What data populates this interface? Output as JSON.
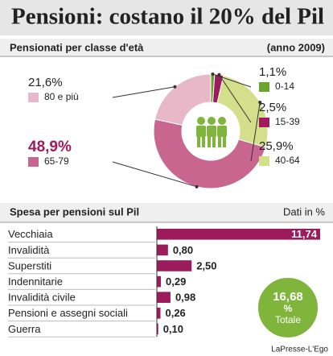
{
  "title": "Pensioni: costano il 20% del Pil",
  "credit": "LaPresse-L'Ego",
  "chart_data": [
    {
      "type": "pie",
      "title": "Pensionati per classe d'età",
      "subtitle": "(anno 2009)",
      "categories": [
        "0-14",
        "15-39",
        "40-64",
        "65-79",
        "80 e più"
      ],
      "values": [
        1.1,
        2.5,
        25.9,
        48.9,
        21.6
      ],
      "value_labels": [
        "1,1%",
        "2,5%",
        "25,9%",
        "48,9%",
        "21,6%"
      ],
      "colors": [
        "#6aa52f",
        "#a01a5e",
        "#d4df8c",
        "#c8668f",
        "#e8b8c9"
      ]
    },
    {
      "type": "hbar",
      "title": "Spesa per pensioni sul Pil",
      "subtitle": "Dati in %",
      "categories": [
        "Vecchiaia",
        "Invalidità",
        "Superstiti",
        "Indennitarie",
        "Invalidità civile",
        "Pensioni e assegni sociali",
        "Guerra"
      ],
      "values": [
        11.74,
        0.8,
        2.5,
        0.29,
        0.98,
        0.26,
        0.1
      ],
      "value_labels": [
        "11,74",
        "0,80",
        "2,50",
        "0,29",
        "0,98",
        "0,26",
        "0,10"
      ],
      "color": "#9c1b5c",
      "total": 16.68,
      "total_label": "16,68",
      "total_unit": "%",
      "total_caption": "Totale"
    }
  ]
}
